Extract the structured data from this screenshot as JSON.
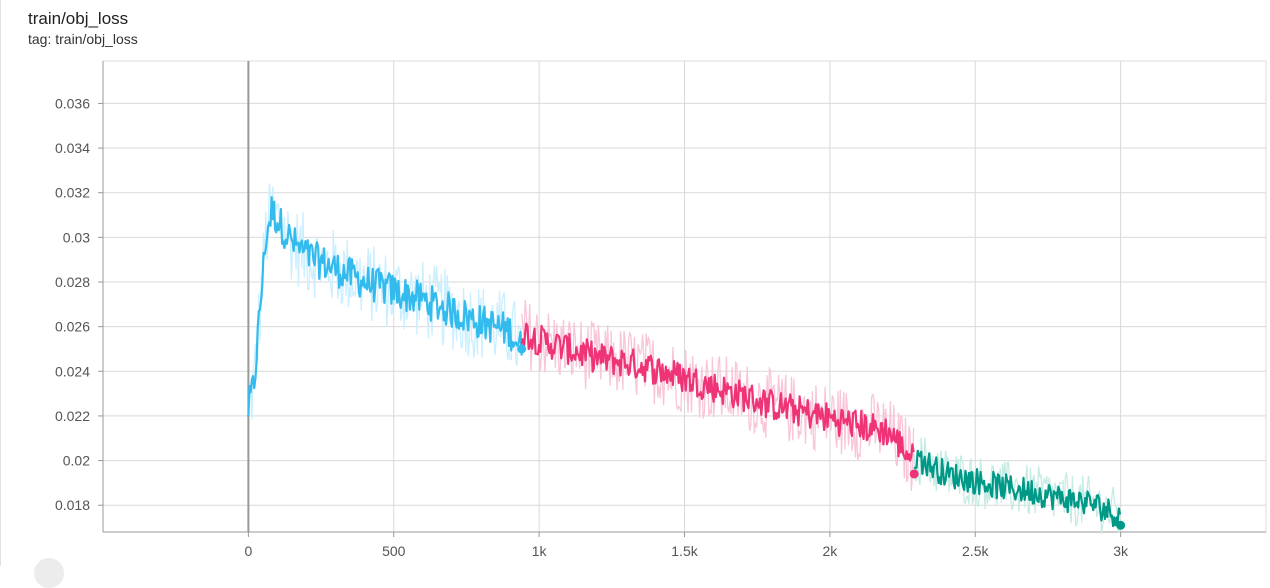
{
  "card": {
    "title": "train/obj_loss",
    "tag": "tag: train/obj_loss"
  },
  "chart_data": {
    "type": "line",
    "title": "train/obj_loss",
    "xlim": [
      -500,
      3500
    ],
    "ylim": [
      0.0168,
      0.0379
    ],
    "grid": true,
    "x_ticks": [
      0,
      500,
      1000,
      1500,
      2000,
      2500,
      3000
    ],
    "x_tick_labels": [
      "0",
      "500",
      "1k",
      "1.5k",
      "2k",
      "2.5k",
      "3k"
    ],
    "y_ticks": [
      0.018,
      0.02,
      0.022,
      0.024,
      0.026,
      0.028,
      0.03,
      0.032,
      0.034,
      0.036
    ],
    "y_tick_labels": [
      "0.018",
      "0.02",
      "0.022",
      "0.024",
      "0.026",
      "0.028",
      "0.03",
      "0.032",
      "0.034",
      "0.036"
    ],
    "series": [
      {
        "color": "#33bbee",
        "raw_color": "#ccefff",
        "x": [
          0,
          20,
          40,
          60,
          80,
          100,
          150,
          200,
          300,
          400,
          500,
          600,
          700,
          800,
          900,
          940
        ],
        "smoothed": [
          0.0223,
          0.0235,
          0.0268,
          0.03,
          0.0312,
          0.0308,
          0.0298,
          0.0292,
          0.0286,
          0.028,
          0.0276,
          0.0272,
          0.0267,
          0.0262,
          0.0258,
          0.025
        ],
        "noise_raw": 0.0018,
        "noise_smooth": 0.0008
      },
      {
        "color": "#ee3377",
        "raw_color": "#f9c6d9",
        "x": [
          940,
          1000,
          1100,
          1200,
          1300,
          1400,
          1500,
          1600,
          1700,
          1800,
          1900,
          2000,
          2100,
          2200,
          2290
        ],
        "smoothed": [
          0.0258,
          0.0254,
          0.025,
          0.0246,
          0.0244,
          0.0241,
          0.0237,
          0.0233,
          0.0229,
          0.0225,
          0.0222,
          0.0219,
          0.0216,
          0.0213,
          0.02
        ],
        "noise_raw": 0.0016,
        "noise_smooth": 0.0007
      },
      {
        "color": "#009988",
        "raw_color": "#c6ebe4",
        "x": [
          2290,
          2400,
          2500,
          2600,
          2700,
          2800,
          2900,
          3000
        ],
        "smoothed": [
          0.0202,
          0.0194,
          0.0191,
          0.0188,
          0.0186,
          0.0183,
          0.0181,
          0.0175
        ],
        "noise_raw": 0.0012,
        "noise_smooth": 0.0006
      }
    ],
    "end_markers": [
      {
        "x": 940,
        "y": 0.025,
        "color": "#33bbee"
      },
      {
        "x": 2290,
        "y": 0.0194,
        "color": "#ee3377"
      },
      {
        "x": 3000,
        "y": 0.0171,
        "color": "#009988"
      }
    ]
  }
}
